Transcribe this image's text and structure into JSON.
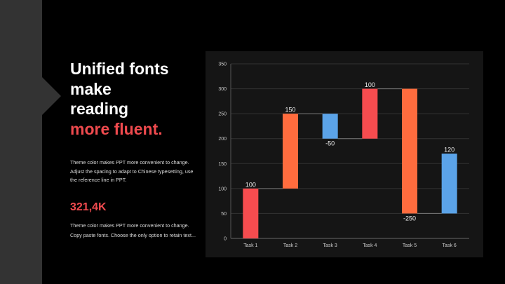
{
  "slide": {
    "title_lines": [
      "Unified fonts",
      "make",
      "reading"
    ],
    "title_accent": "more fluent.",
    "paragraph1": "Theme color makes PPT more convenient to change. Adjust the spacing to adapt to Chinese typesetting, use the reference line in PPT.",
    "stat": "321,4K",
    "paragraph2": "Theme color makes PPT more convenient to change. Copy paste fonts. Choose the only option to retain text..."
  },
  "colors": {
    "accent": "#ef4a4e",
    "orange": "#ff6c3e",
    "blue": "#5ba3e8",
    "sidebar": "#333333",
    "chart_bg": "#151515"
  },
  "chart_data": {
    "type": "waterfall",
    "categories": [
      "Task 1",
      "Task 2",
      "Task 3",
      "Task 4",
      "Task 5",
      "Task 6"
    ],
    "values": [
      100,
      150,
      -50,
      100,
      -250,
      120
    ],
    "labels": [
      "100",
      "150",
      "-50",
      "100",
      "-250",
      "120"
    ],
    "bar_ranges": [
      [
        0,
        100
      ],
      [
        100,
        250
      ],
      [
        200,
        250
      ],
      [
        200,
        300
      ],
      [
        50,
        300
      ],
      [
        50,
        170
      ]
    ],
    "bar_colors": [
      "#f64c4f",
      "#ff6c3e",
      "#5ba3e8",
      "#f64c4f",
      "#ff6c3e",
      "#5ba3e8"
    ],
    "ylim": [
      0,
      350
    ],
    "yticks": [
      "0",
      "50",
      "100",
      "150",
      "200",
      "250",
      "300",
      "350"
    ],
    "grid": true,
    "xlabel": "",
    "ylabel": ""
  }
}
